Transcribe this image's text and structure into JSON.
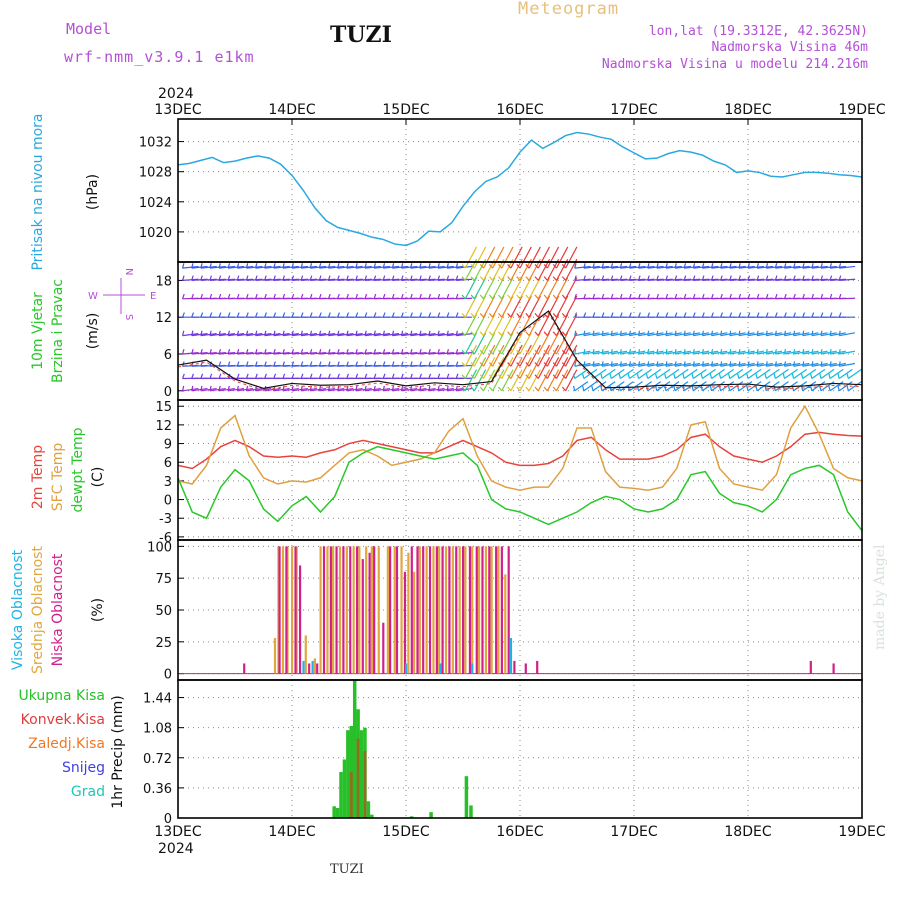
{
  "header": {
    "model_label": "Model",
    "model_name": "wrf-nmm_v3.9.1 e1km",
    "station": "TUZI",
    "title": "Meteogram",
    "lonlat": "lon,lat (19.3312E, 42.3625N)",
    "elevation": "Nadmorska Visina 46m",
    "elevation_model": "Nadmorska Visina u modelu 214.216m"
  },
  "footer": {
    "station": "TUZI",
    "watermark": "made by Angel"
  },
  "time_axis": {
    "year": "2024",
    "ticks": [
      "13DEC",
      "14DEC",
      "15DEC",
      "16DEC",
      "17DEC",
      "18DEC",
      "19DEC"
    ]
  },
  "wind_compass": {
    "n": "N",
    "w": "W",
    "e": "E",
    "s": "S"
  },
  "colors": {
    "pressure": "#2aa8e0",
    "temp2m": "#e8443c",
    "sfc": "#e0a040",
    "dew": "#28c828",
    "high_cloud": "#1eb4e6",
    "mid_cloud": "#e0a83c",
    "low_cloud": "#d0208a",
    "total_precip": "#28c028",
    "conv_precip": "#e03c3c",
    "frozen": "#f07828",
    "snow": "#4040e0",
    "hail": "#1ec8b4",
    "label_purple": "#b44fd6"
  },
  "chart_data": [
    {
      "type": "line",
      "panel": "pressure",
      "ylabel_name": "Pritisak na nivou mora",
      "ylabel_unit": "(hPa)",
      "ylim": [
        1016,
        1035
      ],
      "yticks": [
        1020,
        1024,
        1028,
        1032
      ],
      "grid": true,
      "x_days": [
        0,
        0.1,
        0.2,
        0.3,
        0.4,
        0.5,
        0.6,
        0.7,
        0.8,
        0.9,
        1.0,
        1.1,
        1.2,
        1.3,
        1.4,
        1.5,
        1.6,
        1.7,
        1.8,
        1.9,
        2.0,
        2.1,
        2.2,
        2.3,
        2.4,
        2.5,
        2.6,
        2.7,
        2.8,
        2.9,
        3.0,
        3.1,
        3.2,
        3.3,
        3.4,
        3.5,
        3.6,
        3.7,
        3.8,
        3.9,
        4.0,
        4.1,
        4.2,
        4.3,
        4.4,
        4.5,
        4.6,
        4.7,
        4.8,
        4.9,
        5.0,
        5.1,
        5.2,
        5.3,
        5.4,
        5.5,
        5.6,
        5.7,
        5.8,
        5.9,
        6.0
      ],
      "series": [
        {
          "values": [
            1028.9,
            1029.1,
            1029.5,
            1029.9,
            1029.2,
            1029.4,
            1029.8,
            1030.1,
            1029.8,
            1029.0,
            1027.5,
            1025.5,
            1023.2,
            1021.5,
            1020.6,
            1020.2,
            1019.8,
            1019.3,
            1019.0,
            1018.4,
            1018.2,
            1018.8,
            1020.1,
            1020.0,
            1021.2,
            1023.4,
            1025.3,
            1026.7,
            1027.3,
            1028.5,
            1030.6,
            1032.2,
            1031.1,
            1031.9,
            1032.8,
            1033.2,
            1033.0,
            1032.6,
            1032.3,
            1031.3,
            1030.5,
            1029.7,
            1029.8,
            1030.4,
            1030.8,
            1030.6,
            1030.2,
            1029.4,
            1028.9,
            1027.9,
            1028.1,
            1027.9,
            1027.4,
            1027.3,
            1027.6,
            1027.9,
            1027.9,
            1027.8,
            1027.6,
            1027.5,
            1027.3
          ]
        }
      ]
    },
    {
      "type": "line",
      "panel": "wind",
      "ylabel_name": [
        "10m Vjetar",
        "Brzina i Pravac"
      ],
      "ylabel_unit": "(m/s)",
      "ylim": [
        -1.5,
        21
      ],
      "yticks": [
        0,
        6,
        12,
        18
      ],
      "grid": true,
      "levels": [
        0,
        2,
        4,
        6,
        9,
        12,
        15,
        18,
        20
      ],
      "x_days": [
        0,
        0.25,
        0.5,
        0.75,
        1.0,
        1.25,
        1.5,
        1.75,
        2.0,
        2.25,
        2.5,
        2.75,
        3.0,
        3.25,
        3.5,
        3.75,
        4.0,
        4.25,
        4.5,
        4.75,
        5.0,
        5.25,
        5.5,
        5.75,
        6.0
      ],
      "series": [
        {
          "values": [
            4.2,
            5.0,
            1.9,
            0.4,
            1.2,
            0.9,
            1.0,
            1.6,
            0.8,
            1.3,
            1.0,
            1.5,
            9.5,
            13.0,
            5.0,
            0.5,
            0.6,
            0.9,
            0.8,
            1.0,
            1.1,
            0.6,
            0.8,
            1.2,
            1.0
          ]
        }
      ]
    },
    {
      "type": "line",
      "panel": "temperature",
      "ylabel_name": [
        "2m Temp",
        "SFC Temp",
        "dewpt Temp"
      ],
      "ylabel_unit": "(C)",
      "ylim": [
        -6.5,
        16
      ],
      "yticks": [
        -6,
        -3,
        0,
        3,
        6,
        9,
        12,
        15
      ],
      "grid": true,
      "x_days": [
        0,
        0.125,
        0.25,
        0.375,
        0.5,
        0.625,
        0.75,
        0.875,
        1.0,
        1.125,
        1.25,
        1.375,
        1.5,
        1.625,
        1.75,
        1.875,
        2.0,
        2.125,
        2.25,
        2.375,
        2.5,
        2.625,
        2.75,
        2.875,
        3.0,
        3.125,
        3.25,
        3.375,
        3.5,
        3.625,
        3.75,
        3.875,
        4.0,
        4.125,
        4.25,
        4.375,
        4.5,
        4.625,
        4.75,
        4.875,
        5.0,
        5.125,
        5.25,
        5.375,
        5.5,
        5.625,
        5.75,
        5.875,
        6.0
      ],
      "series": [
        {
          "name": "2m Temp",
          "values": [
            5.5,
            5.0,
            6.5,
            8.5,
            9.5,
            8.5,
            7.0,
            6.8,
            7.0,
            6.8,
            7.5,
            8.0,
            9.0,
            9.5,
            9.0,
            8.5,
            8.0,
            7.5,
            7.5,
            8.5,
            9.5,
            8.5,
            7.5,
            6.0,
            5.5,
            5.5,
            5.8,
            7.0,
            9.5,
            10.0,
            8.0,
            6.5,
            6.5,
            6.5,
            7.0,
            8.0,
            10.0,
            10.5,
            8.5,
            7.0,
            6.5,
            6.0,
            7.0,
            8.5,
            10.5,
            10.8,
            10.5,
            10.3,
            10.2
          ]
        },
        {
          "name": "SFC Temp",
          "values": [
            3.0,
            2.5,
            5.5,
            11.5,
            13.5,
            7.0,
            3.5,
            2.5,
            3.0,
            2.8,
            3.5,
            5.5,
            7.5,
            8.0,
            7.0,
            5.5,
            6.0,
            6.5,
            7.5,
            11.0,
            13.0,
            7.0,
            3.0,
            2.0,
            1.5,
            2.0,
            2.0,
            5.0,
            11.5,
            11.5,
            4.5,
            2.0,
            1.8,
            1.5,
            2.0,
            5.0,
            12.0,
            12.5,
            5.0,
            2.5,
            2.0,
            1.5,
            4.0,
            11.5,
            15.0,
            10.5,
            5.0,
            3.5,
            3.0
          ]
        },
        {
          "name": "dewpt Temp",
          "values": [
            3.5,
            -2.0,
            -3.0,
            2.0,
            4.8,
            3.0,
            -1.5,
            -3.5,
            -1.0,
            0.5,
            -2.0,
            0.5,
            6.0,
            7.5,
            8.5,
            8.0,
            7.5,
            7.0,
            6.5,
            7.0,
            7.5,
            5.5,
            0.0,
            -1.5,
            -2.0,
            -3.0,
            -4.0,
            -3.0,
            -2.0,
            -0.5,
            0.5,
            0.0,
            -1.5,
            -2.0,
            -1.5,
            0.0,
            4.0,
            4.5,
            1.0,
            -0.5,
            -1.0,
            -2.0,
            0.0,
            4.0,
            5.0,
            5.5,
            4.0,
            -2.0,
            -5.0
          ]
        }
      ]
    },
    {
      "type": "bar",
      "panel": "clouds",
      "ylabel_name": [
        "Visoka Oblacnost",
        "Srednja Oblacnost",
        "Niska Oblacnost"
      ],
      "ylabel_unit": "(%)",
      "ylim": [
        -5,
        105
      ],
      "yticks": [
        0,
        25,
        50,
        75,
        100
      ],
      "grid": true,
      "series": [
        {
          "name": "Srednja Oblacnost",
          "x_days": [
            0.85,
            0.88,
            0.92,
            0.96,
            1.0,
            1.04,
            1.12,
            1.2,
            1.25,
            1.31,
            1.36,
            1.42,
            1.48,
            1.54,
            1.59,
            1.65,
            1.7,
            1.76,
            1.84,
            1.9,
            1.96,
            2.02,
            2.07,
            2.12,
            2.18,
            2.24,
            2.29,
            2.35,
            2.41,
            2.47,
            2.52,
            2.58,
            2.64,
            2.7,
            2.75,
            2.81,
            2.87
          ],
          "values": [
            28,
            100,
            100,
            100,
            100,
            100,
            30,
            12,
            100,
            100,
            100,
            100,
            100,
            100,
            100,
            100,
            100,
            100,
            100,
            100,
            100,
            95,
            80,
            100,
            100,
            100,
            100,
            100,
            100,
            100,
            100,
            100,
            100,
            100,
            100,
            100,
            78
          ]
        },
        {
          "name": "Niska Oblacnost",
          "x_days": [
            0.58,
            0.89,
            0.95,
            1.03,
            1.07,
            1.15,
            1.22,
            1.28,
            1.34,
            1.39,
            1.45,
            1.51,
            1.57,
            1.62,
            1.68,
            1.72,
            1.8,
            1.86,
            1.92,
            1.99,
            2.05,
            2.1,
            2.15,
            2.21,
            2.27,
            2.32,
            2.38,
            2.44,
            2.5,
            2.56,
            2.62,
            2.67,
            2.73,
            2.79,
            2.84,
            2.9,
            2.95,
            3.05,
            3.15,
            5.55,
            5.75
          ],
          "values": [
            8,
            100,
            100,
            100,
            85,
            8,
            8,
            100,
            100,
            100,
            100,
            100,
            100,
            90,
            95,
            100,
            40,
            100,
            100,
            80,
            100,
            100,
            100,
            100,
            100,
            100,
            100,
            100,
            100,
            100,
            100,
            100,
            100,
            100,
            100,
            100,
            10,
            8,
            10,
            10,
            8
          ]
        },
        {
          "name": "Visoka Oblacnost",
          "x_days": [
            1.1,
            1.18,
            2.0,
            2.3,
            2.58,
            2.92
          ],
          "values": [
            10,
            10,
            8,
            8,
            8,
            28
          ]
        }
      ]
    },
    {
      "type": "bar",
      "panel": "precipitation",
      "ylabel_name": [
        "Ukupna Kisa",
        "Konvek.Kisa",
        "Zaledj.Kisa",
        "Snijeg",
        "Grad"
      ],
      "ylabel_unit": "1hr Precip (mm)",
      "ylim": [
        0,
        1.65
      ],
      "yticks": [
        0,
        0.36,
        0.72,
        1.08,
        1.44
      ],
      "ytick_labels": [
        "0",
        "0.36",
        "0.72",
        "1.08",
        "1.44"
      ],
      "grid": true,
      "series": [
        {
          "name": "Ukupna Kisa",
          "x_days": [
            1.37,
            1.4,
            1.43,
            1.46,
            1.49,
            1.52,
            1.55,
            1.58,
            1.61,
            1.64,
            1.67,
            1.7,
            2.05,
            2.22,
            2.53,
            2.57
          ],
          "values": [
            0.14,
            0.12,
            0.55,
            0.7,
            1.05,
            1.1,
            1.65,
            1.3,
            1.05,
            1.08,
            0.2,
            0.04,
            0.02,
            0.07,
            0.5,
            0.15
          ]
        },
        {
          "name": "Konvek.Kisa",
          "x_days": [
            1.52,
            1.58,
            1.64
          ],
          "values": [
            0.55,
            0.95,
            0.8
          ]
        }
      ]
    }
  ]
}
